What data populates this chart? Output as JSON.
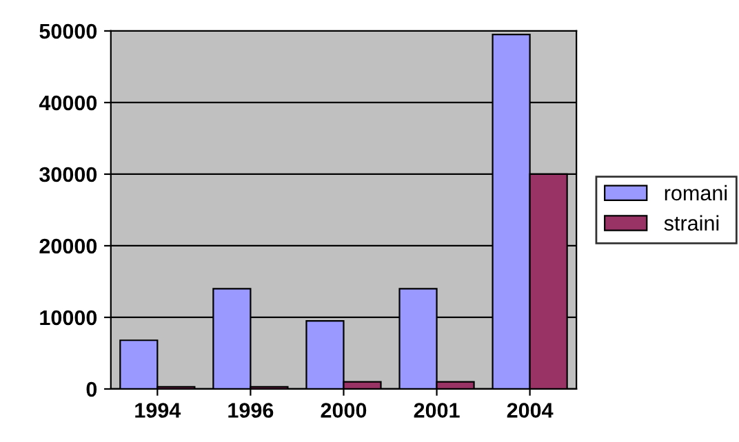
{
  "chart_data": {
    "type": "bar",
    "categories": [
      "1994",
      "1996",
      "2000",
      "2001",
      "2004"
    ],
    "series": [
      {
        "name": "romani",
        "color": "#9999ff",
        "values": [
          6800,
          14000,
          9500,
          14000,
          49500
        ]
      },
      {
        "name": "straini",
        "color": "#993366",
        "values": [
          300,
          300,
          1000,
          1000,
          30000
        ]
      }
    ],
    "ylim": [
      0,
      50000
    ],
    "yticks": [
      0,
      10000,
      20000,
      30000,
      40000,
      50000
    ],
    "grid": "y",
    "legend": "right"
  }
}
